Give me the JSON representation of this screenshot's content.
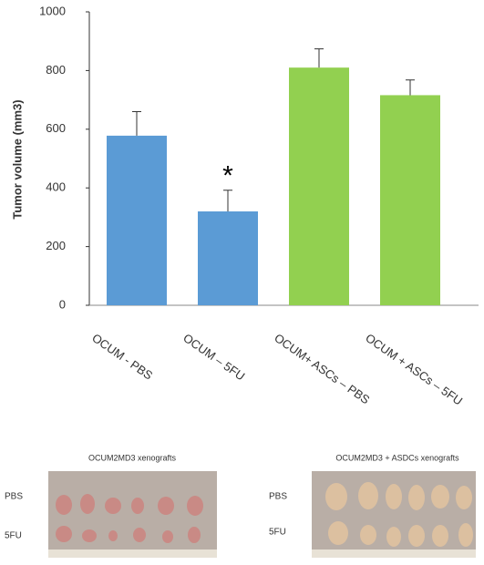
{
  "chart_data": {
    "type": "bar",
    "y_label": "Tumor volume (mm3)",
    "categories": [
      "OCUM - PBS",
      "OCUM – 5FU",
      "OCUM+ ASCs – PBS",
      "OCUM + ASCs – 5FU"
    ],
    "values": [
      578,
      320,
      810,
      716
    ],
    "errors": [
      82,
      72,
      64,
      52
    ],
    "colors": [
      "#5b9bd5",
      "#5b9bd5",
      "#92d050",
      "#92d050"
    ],
    "annotations": [
      {
        "text": "*",
        "category": 1
      }
    ],
    "ylim": [
      0,
      1000
    ],
    "yticks": [
      0,
      200,
      400,
      600,
      800,
      1000
    ]
  },
  "panels": [
    {
      "title": "OCUM2MD3 xenografts",
      "rows": [
        "PBS",
        "5FU"
      ]
    },
    {
      "title": "OCUM2MD3 + ASDCs  xenografts",
      "rows": [
        "PBS",
        "5FU"
      ]
    }
  ]
}
